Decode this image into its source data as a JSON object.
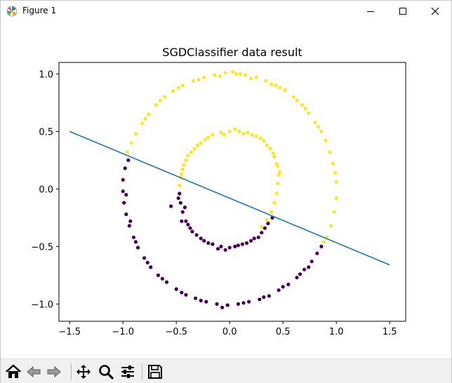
{
  "window": {
    "title": "Figure 1",
    "controls": [
      "minimize",
      "maximize",
      "close"
    ]
  },
  "toolbar": {
    "buttons": [
      {
        "name": "home",
        "icon": "home-icon"
      },
      {
        "name": "back",
        "icon": "left-arrow-icon"
      },
      {
        "name": "forward",
        "icon": "right-arrow-icon"
      },
      {
        "name": "pan",
        "icon": "move-icon"
      },
      {
        "name": "zoom",
        "icon": "magnifier-icon"
      },
      {
        "name": "configure-subplots",
        "icon": "sliders-icon"
      },
      {
        "name": "save",
        "icon": "floppy-disk-icon"
      }
    ]
  },
  "chart_data": {
    "type": "scatter",
    "title": "SGDClassifier data result",
    "xlabel": "",
    "ylabel": "",
    "xlim": [
      -1.6,
      1.65
    ],
    "ylim": [
      -1.15,
      1.1
    ],
    "xticks": [
      -1.5,
      -1.0,
      -0.5,
      0.0,
      0.5,
      1.0,
      1.5
    ],
    "xtick_labels": [
      "−1.5",
      "−1.0",
      "−0.5",
      "0.0",
      "0.5",
      "1.0",
      "1.5"
    ],
    "yticks": [
      1.0,
      0.5,
      0.0,
      -0.5,
      -1.0
    ],
    "ytick_labels": [
      "1.0",
      "0.5",
      "0.0",
      "−0.5",
      "−1.0"
    ],
    "grid": false,
    "colors": {
      "class_0": "#440154",
      "class_1": "#fde725",
      "line": "#1f77b4"
    },
    "decision_line": {
      "x": [
        -1.5,
        1.5
      ],
      "y": [
        0.5,
        -0.66
      ]
    },
    "series": [
      {
        "values": [
          [
            1.0,
            0.06
          ],
          [
            0.99,
            0.14
          ],
          [
            0.97,
            0.22
          ],
          [
            0.94,
            0.32
          ],
          [
            0.9,
            0.42
          ],
          [
            0.86,
            0.5
          ],
          [
            0.8,
            0.58
          ],
          [
            0.74,
            0.66
          ],
          [
            0.68,
            0.73
          ],
          [
            0.6,
            0.8
          ],
          [
            0.52,
            0.86
          ],
          [
            0.43,
            0.9
          ],
          [
            0.34,
            0.94
          ],
          [
            0.25,
            0.97
          ],
          [
            0.15,
            0.99
          ],
          [
            0.06,
            1.0
          ],
          [
            -0.04,
            1.01
          ],
          [
            -0.14,
            0.99
          ],
          [
            -0.24,
            0.97
          ],
          [
            -0.34,
            0.94
          ],
          [
            -0.44,
            0.9
          ],
          [
            -0.53,
            0.85
          ],
          [
            -0.61,
            0.8
          ],
          [
            -0.69,
            0.73
          ],
          [
            -0.76,
            0.65
          ],
          [
            -0.82,
            0.57
          ],
          [
            -0.88,
            0.48
          ],
          [
            -0.92,
            0.4
          ],
          [
            -0.96,
            0.32
          ],
          [
            1.0,
            -0.08
          ],
          [
            0.98,
            -0.2
          ],
          [
            0.95,
            -0.32
          ],
          [
            0.91,
            -0.42
          ],
          [
            0.88,
            -0.46
          ],
          [
            0.03,
            1.02
          ],
          [
            0.1,
            1.0
          ],
          [
            -0.09,
            0.98
          ],
          [
            0.2,
            0.96
          ],
          [
            0.39,
            0.91
          ],
          [
            0.47,
            0.88
          ],
          [
            0.63,
            0.77
          ],
          [
            0.71,
            0.7
          ],
          [
            0.83,
            0.54
          ],
          [
            -0.29,
            0.95
          ],
          [
            -0.48,
            0.88
          ],
          [
            -0.65,
            0.77
          ],
          [
            -0.79,
            0.61
          ],
          [
            0.45,
            0.05
          ],
          [
            0.46,
            0.12
          ],
          [
            0.45,
            0.2
          ],
          [
            0.42,
            0.28
          ],
          [
            0.38,
            0.35
          ],
          [
            0.32,
            0.42
          ],
          [
            0.25,
            0.46
          ],
          [
            0.17,
            0.49
          ],
          [
            0.09,
            0.5
          ],
          [
            0.0,
            0.5
          ],
          [
            -0.08,
            0.49
          ],
          [
            -0.16,
            0.47
          ],
          [
            -0.23,
            0.43
          ],
          [
            -0.3,
            0.38
          ],
          [
            -0.36,
            0.32
          ],
          [
            -0.41,
            0.25
          ],
          [
            -0.44,
            0.17
          ],
          [
            -0.46,
            0.1
          ],
          [
            -0.47,
            0.03
          ],
          [
            0.44,
            -0.04
          ],
          [
            0.42,
            -0.12
          ],
          [
            0.39,
            -0.2
          ],
          [
            0.35,
            -0.27
          ],
          [
            0.3,
            -0.33
          ],
          [
            0.05,
            0.52
          ],
          [
            0.13,
            0.48
          ],
          [
            0.21,
            0.47
          ],
          [
            0.29,
            0.44
          ],
          [
            0.35,
            0.38
          ],
          [
            0.41,
            0.31
          ],
          [
            0.44,
            0.22
          ],
          [
            0.47,
            0.15
          ],
          [
            -0.05,
            0.47
          ],
          [
            -0.2,
            0.45
          ],
          [
            -0.27,
            0.4
          ],
          [
            -0.33,
            0.35
          ],
          [
            -0.39,
            0.29
          ],
          [
            -0.43,
            0.21
          ],
          [
            -0.45,
            0.13
          ]
        ]
      },
      {
        "values": [
          [
            -0.98,
            0.18
          ],
          [
            -1.0,
            0.08
          ],
          [
            -1.0,
            -0.02
          ],
          [
            -0.99,
            -0.12
          ],
          [
            -0.97,
            -0.22
          ],
          [
            -0.94,
            -0.32
          ],
          [
            -0.9,
            -0.42
          ],
          [
            -0.86,
            -0.51
          ],
          [
            -0.8,
            -0.6
          ],
          [
            -0.74,
            -0.68
          ],
          [
            -0.67,
            -0.75
          ],
          [
            -0.59,
            -0.81
          ],
          [
            -0.5,
            -0.87
          ],
          [
            -0.41,
            -0.92
          ],
          [
            -0.32,
            -0.95
          ],
          [
            -0.22,
            -0.98
          ],
          [
            -0.12,
            -1.0
          ],
          [
            -0.02,
            -1.01
          ],
          [
            0.08,
            -1.0
          ],
          [
            0.18,
            -0.98
          ],
          [
            0.28,
            -0.96
          ],
          [
            0.37,
            -0.93
          ],
          [
            0.46,
            -0.88
          ],
          [
            0.55,
            -0.83
          ],
          [
            0.63,
            -0.77
          ],
          [
            0.7,
            -0.7
          ],
          [
            0.77,
            -0.63
          ],
          [
            0.82,
            -0.56
          ],
          [
            0.86,
            -0.5
          ],
          [
            -0.95,
            0.25
          ],
          [
            -0.97,
            -0.05
          ],
          [
            -0.93,
            -0.28
          ],
          [
            -0.88,
            -0.46
          ],
          [
            -0.77,
            -0.64
          ],
          [
            -0.63,
            -0.78
          ],
          [
            -0.45,
            -0.9
          ],
          [
            -0.27,
            -0.97
          ],
          [
            -0.07,
            -1.03
          ],
          [
            0.13,
            -0.99
          ],
          [
            0.32,
            -0.94
          ],
          [
            0.5,
            -0.85
          ],
          [
            0.66,
            -0.74
          ],
          [
            0.74,
            -0.68
          ],
          [
            -0.47,
            -0.04
          ],
          [
            -0.46,
            -0.12
          ],
          [
            -0.44,
            -0.2
          ],
          [
            -0.41,
            -0.28
          ],
          [
            -0.37,
            -0.34
          ],
          [
            -0.31,
            -0.4
          ],
          [
            -0.24,
            -0.45
          ],
          [
            -0.16,
            -0.48
          ],
          [
            -0.08,
            -0.5
          ],
          [
            0.0,
            -0.51
          ],
          [
            0.08,
            -0.49
          ],
          [
            0.16,
            -0.47
          ],
          [
            0.23,
            -0.43
          ],
          [
            0.3,
            -0.38
          ],
          [
            0.36,
            -0.3
          ],
          [
            -0.45,
            -0.28
          ],
          [
            -0.42,
            -0.16
          ],
          [
            -0.55,
            -0.15
          ],
          [
            -0.48,
            -0.08
          ],
          [
            -0.35,
            -0.37
          ],
          [
            -0.2,
            -0.47
          ],
          [
            -0.04,
            -0.53
          ],
          [
            0.12,
            -0.48
          ],
          [
            0.27,
            -0.42
          ],
          [
            0.33,
            -0.34
          ],
          [
            0.4,
            -0.25
          ],
          [
            -0.39,
            -0.31
          ],
          [
            -0.27,
            -0.43
          ],
          [
            -0.11,
            -0.52
          ],
          [
            0.05,
            -0.5
          ],
          [
            0.2,
            -0.45
          ]
        ]
      }
    ]
  }
}
